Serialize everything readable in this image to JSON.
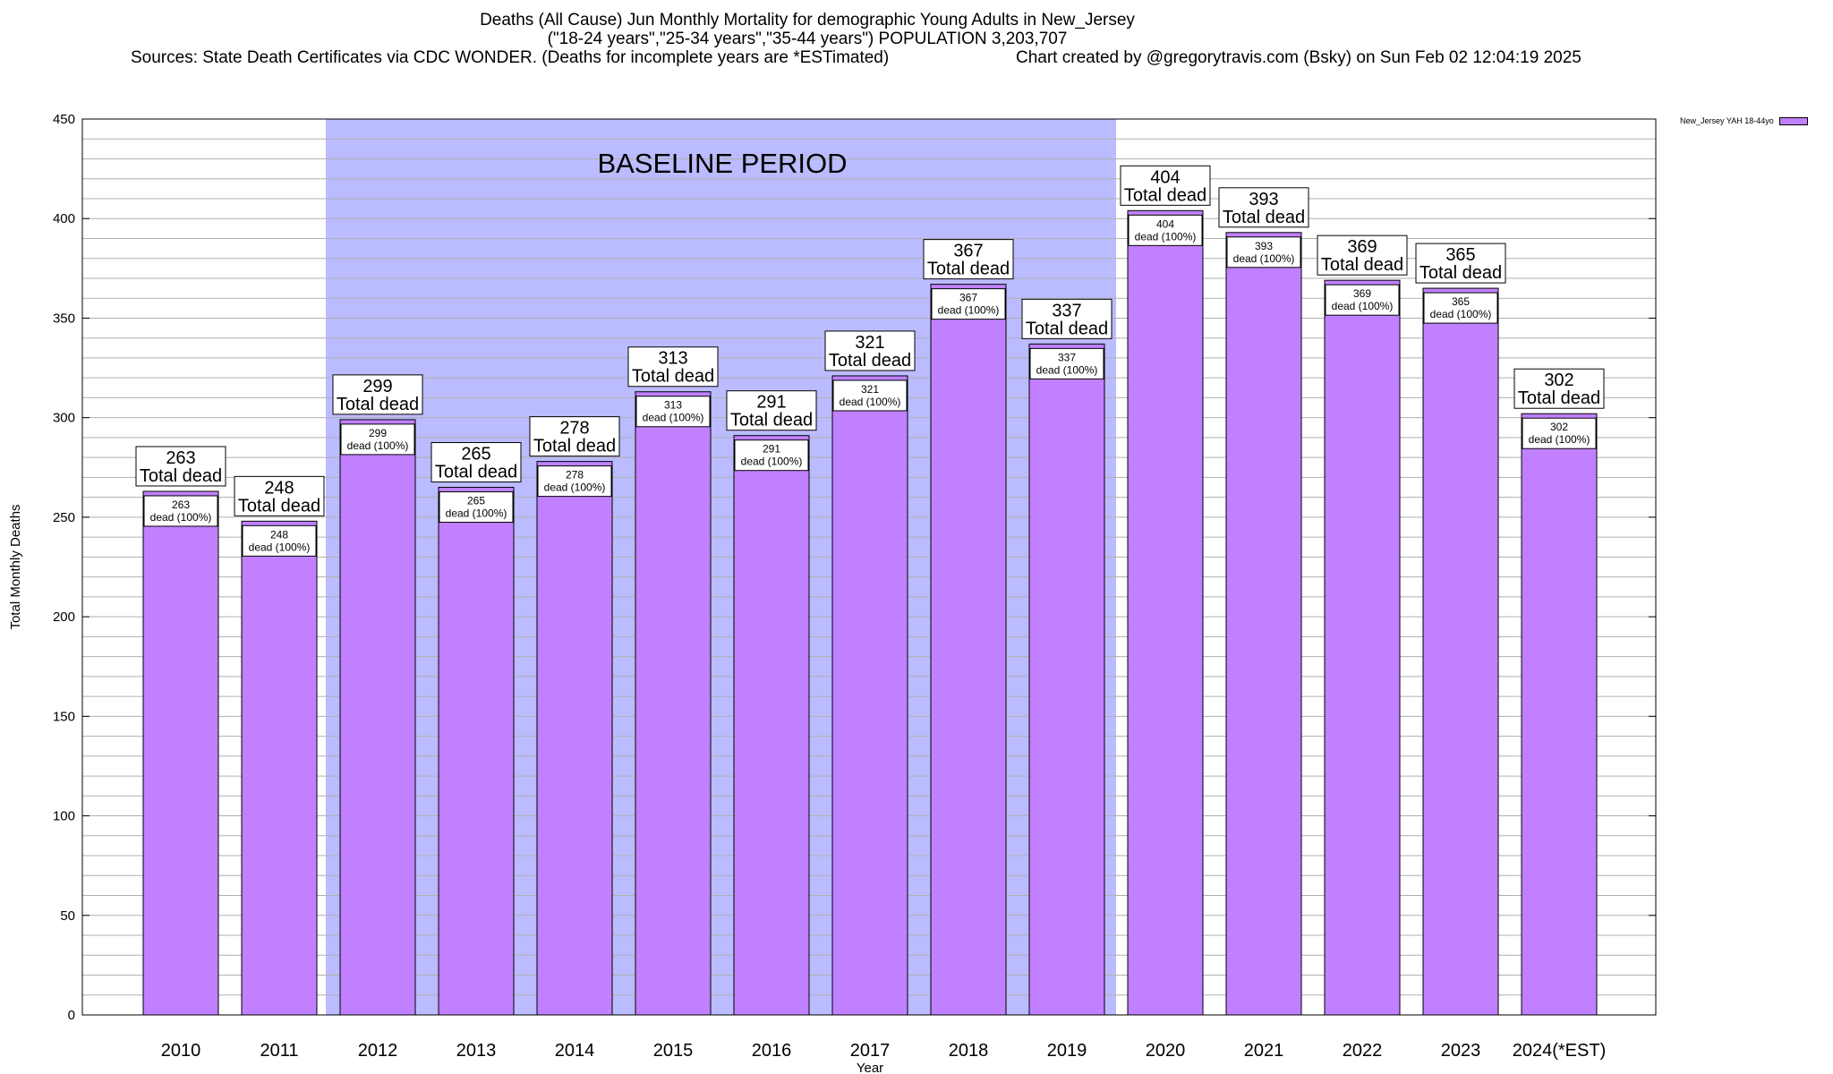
{
  "title": {
    "line1": "Deaths (All Cause) Jun Monthly Mortality for demographic Young Adults in New_Jersey",
    "line2": "(\"18-24 years\",\"25-34 years\",\"35-44 years\") POPULATION 3,203,707",
    "sources": "Sources: State Death Certificates via CDC WONDER. (Deaths for incomplete years are *ESTimated)",
    "credit": "Chart created by @gregorytravis.com (Bsky) on Sun Feb 02 12:04:19 2025"
  },
  "legend": {
    "label": "New_Jersey YAH 18-44yo",
    "color": "#c080ff"
  },
  "chart_data": {
    "type": "bar",
    "xlabel": "Year",
    "ylabel": "Total Monthly Deaths",
    "ylim": [
      0,
      450
    ],
    "yticks": [
      0,
      50,
      100,
      150,
      200,
      250,
      300,
      350,
      400,
      450
    ],
    "grid": true,
    "legend_position": "top-right (outside plot)",
    "categories": [
      "2010",
      "2011",
      "2012",
      "2013",
      "2014",
      "2015",
      "2016",
      "2017",
      "2018",
      "2019",
      "2020",
      "2021",
      "2022",
      "2023",
      "2024(*EST)"
    ],
    "series": [
      {
        "name": "New_Jersey YAH 18-44yo",
        "values": [
          263,
          248,
          299,
          265,
          278,
          313,
          291,
          321,
          367,
          337,
          404,
          393,
          369,
          365,
          302
        ]
      }
    ],
    "bar_color": "#c080ff",
    "top_label_suffix": "Total dead",
    "inner_label_suffix": "dead (100%)",
    "baseline": {
      "label": "BASELINE PERIOD",
      "start": "2012",
      "end": "2019",
      "color": "#bbbbff"
    }
  }
}
